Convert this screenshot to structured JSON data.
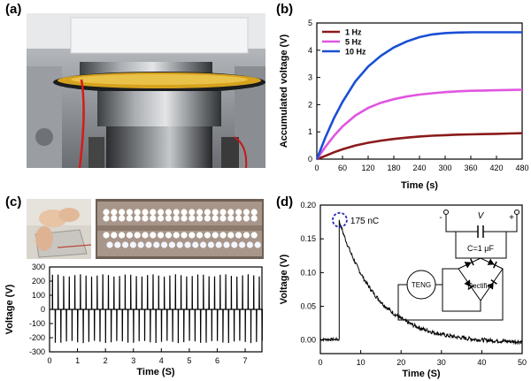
{
  "panels": {
    "a": {
      "label": "(a)"
    },
    "b": {
      "label": "(b)"
    },
    "c": {
      "label": "(c)"
    },
    "d": {
      "label": "(d)"
    }
  },
  "chart_data": [
    {
      "id": "b",
      "type": "line",
      "xlabel": "Time (s)",
      "ylabel": "Accumulated voltage (V)",
      "xlim": [
        0,
        480
      ],
      "ylim": [
        0,
        5
      ],
      "xticks": [
        "0",
        "60",
        "120",
        "180",
        "240",
        "300",
        "360",
        "420",
        "480"
      ],
      "yticks": [
        "0",
        "1",
        "2",
        "3",
        "4",
        "5"
      ],
      "legend_position": "top-left",
      "series": [
        {
          "name": "1 Hz",
          "color": "#8b1a1a",
          "x": [
            0,
            20,
            40,
            60,
            90,
            120,
            150,
            180,
            210,
            240,
            270,
            300,
            330,
            360,
            390,
            420,
            450,
            480
          ],
          "y": [
            0,
            0.12,
            0.25,
            0.36,
            0.5,
            0.6,
            0.68,
            0.74,
            0.79,
            0.83,
            0.86,
            0.88,
            0.9,
            0.91,
            0.92,
            0.93,
            0.94,
            0.95
          ]
        },
        {
          "name": "5 Hz",
          "color": "#e055e0",
          "x": [
            0,
            20,
            40,
            60,
            90,
            120,
            150,
            180,
            210,
            240,
            270,
            300,
            330,
            360,
            390,
            420,
            450,
            480
          ],
          "y": [
            0,
            0.45,
            0.85,
            1.2,
            1.6,
            1.88,
            2.07,
            2.2,
            2.3,
            2.37,
            2.42,
            2.46,
            2.49,
            2.51,
            2.52,
            2.53,
            2.54,
            2.55
          ]
        },
        {
          "name": "10 Hz",
          "color": "#1a4fd6",
          "x": [
            0,
            20,
            40,
            60,
            90,
            120,
            150,
            180,
            210,
            240,
            270,
            300,
            330,
            360,
            390,
            420,
            450,
            480
          ],
          "y": [
            0,
            0.8,
            1.5,
            2.1,
            2.85,
            3.4,
            3.8,
            4.1,
            4.32,
            4.48,
            4.58,
            4.63,
            4.65,
            4.66,
            4.66,
            4.66,
            4.66,
            4.66
          ]
        }
      ]
    },
    {
      "id": "c",
      "type": "line",
      "xlabel": "Time (S)",
      "ylabel": "Voltage (V)",
      "xlim": [
        0,
        7.6
      ],
      "ylim": [
        -300,
        300
      ],
      "xticks": [
        "0",
        "1",
        "2",
        "3",
        "4",
        "5",
        "6",
        "7"
      ],
      "yticks": [
        "300",
        "200",
        "100",
        "0",
        "-100",
        "-200",
        "-300"
      ],
      "pulse_period_s": 0.2,
      "pulse_start_s": 0.1,
      "positive_peak_v": 240,
      "negative_peak_v": -230,
      "series": [
        {
          "color": "#000000"
        }
      ]
    },
    {
      "id": "d",
      "type": "line",
      "xlabel": "Time (S)",
      "ylabel": "Voltage (V)",
      "xlim": [
        0,
        50
      ],
      "ylim": [
        -0.02,
        0.2
      ],
      "xticks": [
        "0",
        "10",
        "20",
        "30",
        "40",
        "50"
      ],
      "yticks": [
        "0.00",
        "0.05",
        "0.10",
        "0.15",
        "0.20"
      ],
      "annotation": "175 nC",
      "peak": {
        "x": 4.8,
        "y": 0.178
      },
      "decay_tau_s": 9.5,
      "series": [
        {
          "color": "#000000"
        }
      ]
    }
  ],
  "circuit": {
    "minus": "-",
    "v": "V",
    "plus": "+",
    "capacitor": "C=1 μF",
    "teng": "TENG",
    "rectifier": "Rectifier"
  }
}
